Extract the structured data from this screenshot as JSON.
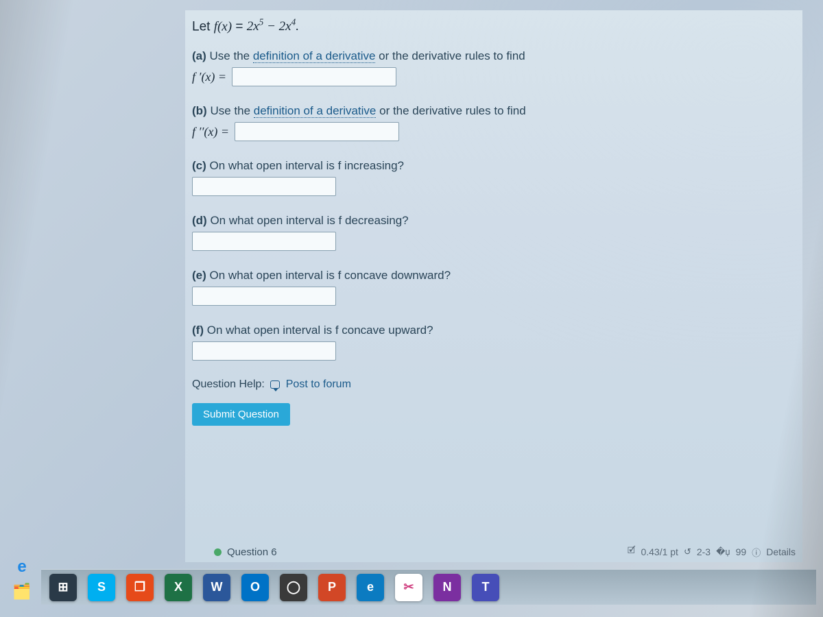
{
  "function_definition": {
    "prefix": "Let ",
    "lhs": "f(x)",
    "eq": " = ",
    "rhs_html": "2x⁵ − 2x⁴.",
    "full_plain": "Let f(x) = 2x^5 − 2x^4."
  },
  "parts": {
    "a": {
      "label": "(a)",
      "text_before": " Use the ",
      "link_text": "definition of a derivative",
      "text_after": " or the derivative rules to find",
      "prefix": "f ′(x) =",
      "value": ""
    },
    "b": {
      "label": "(b)",
      "text_before": " Use the ",
      "link_text": "definition of a derivative",
      "text_after": " or the derivative rules to find",
      "prefix": "f ′′(x) =",
      "value": ""
    },
    "c": {
      "label": "(c)",
      "text": " On what open interval is f increasing?",
      "value": ""
    },
    "d": {
      "label": "(d)",
      "text": " On what open interval is f decreasing?",
      "value": ""
    },
    "e": {
      "label": "(e)",
      "text": " On what open interval is f concave downward?",
      "value": ""
    },
    "f": {
      "label": "(f)",
      "text": " On what open interval is f concave upward?",
      "value": ""
    }
  },
  "help": {
    "label": "Question Help:",
    "link": "Post to forum"
  },
  "submit_label": "Submit Question",
  "next_question": {
    "label": "Question 6",
    "score": "0.43/1 pt",
    "attempts": "2-3",
    "retries": "99",
    "details": "Details"
  },
  "taskbar": {
    "icons": [
      {
        "name": "start-icon",
        "letter": "⊞",
        "bg": "#2a3a48"
      },
      {
        "name": "skype-icon",
        "letter": "S",
        "bg": "#00aff0"
      },
      {
        "name": "office-icon",
        "letter": "❐",
        "bg": "#e64a19"
      },
      {
        "name": "excel-icon",
        "letter": "X",
        "bg": "#1e7145"
      },
      {
        "name": "word-icon",
        "letter": "W",
        "bg": "#2b579a"
      },
      {
        "name": "outlook-icon",
        "letter": "O",
        "bg": "#0072c6"
      },
      {
        "name": "cortana-icon",
        "letter": "◯",
        "bg": "#3a3a3a"
      },
      {
        "name": "powerpoint-icon",
        "letter": "P",
        "bg": "#d24726"
      },
      {
        "name": "edge-icon",
        "letter": "e",
        "bg": "#0b7bc1"
      },
      {
        "name": "snip-icon",
        "letter": "✂",
        "bg": "#ffffff",
        "fg": "#d04080"
      },
      {
        "name": "onenote-icon",
        "letter": "N",
        "bg": "#7b2fa0"
      },
      {
        "name": "teams-icon",
        "letter": "T",
        "bg": "#464eb8"
      }
    ]
  },
  "left_icons": [
    {
      "name": "windows-start-icon"
    },
    {
      "name": "internet-explorer-icon",
      "glyph": "e",
      "color": "#1e88e5"
    },
    {
      "name": "file-explorer-icon",
      "glyph": "🗂",
      "color": "#e8c060"
    }
  ],
  "colors": {
    "background_top": "#d8e4ec",
    "background_bottom": "#c8d8e4",
    "text": "#2a4558",
    "link": "#1a5a8a",
    "button_bg": "#2aa8d8",
    "button_fg": "#ffffff",
    "input_border": "#88a0b0",
    "input_bg": "#f6fafc",
    "status_dot": "#4aa868"
  }
}
